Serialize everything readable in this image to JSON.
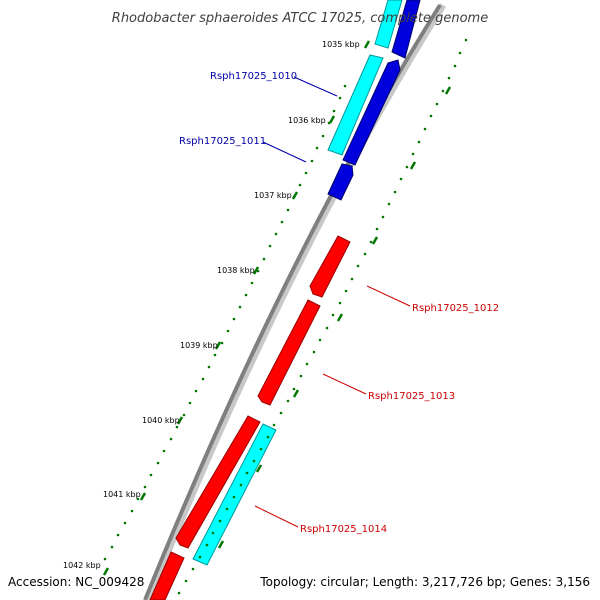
{
  "title": "Rhodobacter sphaeroides ATCC 17025, complete genome",
  "footer": {
    "accession": "Accession: NC_009428",
    "topology": "Topology: circular; Length: 3,217,726 bp; Genes: 3,156"
  },
  "colors": {
    "backbone": "#7f7f7f",
    "backbone_light": "#c8c8c8",
    "cds_forward_red": "#ff0000",
    "cds_dark_blue": "#0000dd",
    "cds_cyan": "#00ffff",
    "tick_mark": "#007700",
    "label_blue": "#0000aa",
    "label_red": "#cc0000"
  },
  "ticks": [
    {
      "label": "1035 kbp"
    },
    {
      "label": "1036 kbp"
    },
    {
      "label": "1037 kbp"
    },
    {
      "label": "1038 kbp"
    },
    {
      "label": "1039 kbp"
    },
    {
      "label": "1040 kbp"
    },
    {
      "label": "1041 kbp"
    },
    {
      "label": "1042 kbp"
    }
  ],
  "gene_labels": [
    {
      "name": "Rsph17025_1010",
      "color": "#0000aa"
    },
    {
      "name": "Rsph17025_1011",
      "color": "#0000aa"
    },
    {
      "name": "Rsph17025_1012",
      "color": "#cc0000"
    },
    {
      "name": "Rsph17025_1013",
      "color": "#cc0000"
    },
    {
      "name": "Rsph17025_1014",
      "color": "#cc0000"
    }
  ]
}
